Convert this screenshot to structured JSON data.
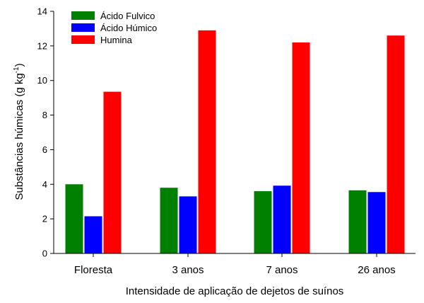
{
  "chart_data": {
    "type": "bar",
    "categories": [
      "Floresta",
      "3 anos",
      "7 anos",
      "26 anos"
    ],
    "series": [
      {
        "name": "Ácido Fulvico",
        "color": "#008000",
        "values": [
          4.0,
          3.8,
          3.6,
          3.65
        ]
      },
      {
        "name": "Ácido Húmico",
        "color": "#0000ff",
        "values": [
          2.15,
          3.3,
          3.92,
          3.55
        ]
      },
      {
        "name": "Humina",
        "color": "#ff0000",
        "values": [
          9.35,
          12.9,
          12.2,
          12.6
        ]
      }
    ],
    "xlabel": "Intensidade de aplicação de dejetos de suínos",
    "ylabel_main": "Substâncias húmicas (g kg",
    "ylabel_sup": "-1",
    "ylabel_end": ")",
    "ylim": [
      0,
      14
    ],
    "yticks": [
      0,
      2,
      4,
      6,
      8,
      10,
      12,
      14
    ],
    "legend_position": "top-left",
    "grid": false
  }
}
